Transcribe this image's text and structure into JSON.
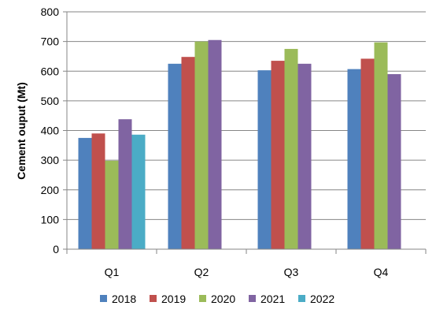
{
  "chart_data": {
    "type": "bar",
    "title": "",
    "xlabel": "",
    "ylabel": "Cement ouput (Mt)",
    "ylim": [
      0,
      800
    ],
    "yticks": [
      0,
      100,
      200,
      300,
      400,
      500,
      600,
      700,
      800
    ],
    "categories": [
      "Q1",
      "Q2",
      "Q3",
      "Q4"
    ],
    "legend_position": "bottom",
    "grid": true,
    "series": [
      {
        "name": "2018",
        "color": "#4f81bd",
        "values": [
          375,
          625,
          603,
          607
        ]
      },
      {
        "name": "2019",
        "color": "#c0504d",
        "values": [
          390,
          648,
          635,
          642
        ]
      },
      {
        "name": "2020",
        "color": "#9bbb59",
        "values": [
          298,
          700,
          675,
          697
        ]
      },
      {
        "name": "2021",
        "color": "#8064a2",
        "values": [
          438,
          705,
          625,
          590
        ]
      },
      {
        "name": "2022",
        "color": "#4bacc6",
        "values": [
          386,
          null,
          null,
          null
        ]
      }
    ]
  }
}
